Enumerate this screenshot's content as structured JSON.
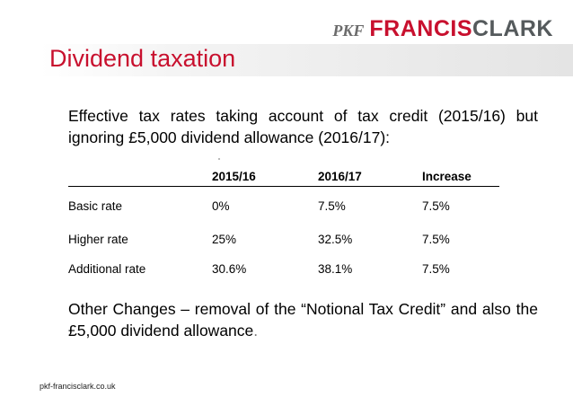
{
  "brand": {
    "prefix": "PKF",
    "name_part1": "FRANCIS",
    "name_part2": "CLARK"
  },
  "slide_title": "Dividend taxation",
  "intro_text": "Effective tax rates taking account of tax credit (2015/16) but ignoring £5,000 dividend allowance (2016/17):",
  "table": {
    "headers": [
      "",
      "2015/16",
      "2016/17",
      "Increase"
    ],
    "rows": [
      {
        "label": "Basic rate",
        "y2015": "0%",
        "y2016": "7.5%",
        "increase": "7.5%"
      },
      {
        "label": "Higher rate",
        "y2015": "25%",
        "y2016": "32.5%",
        "increase": "7.5%"
      },
      {
        "label": "Additional rate",
        "y2015": "30.6%",
        "y2016": "38.1%",
        "increase": "7.5%"
      }
    ]
  },
  "other_changes": {
    "text": "Other Changes – removal of the “Notional Tax Credit” and also the £5,000 dividend allowance",
    "tail": "."
  },
  "footer_url": "pkf-francisclark.co.uk",
  "colors": {
    "accent": "#c8102e",
    "logo_grey": "#555a5c"
  }
}
